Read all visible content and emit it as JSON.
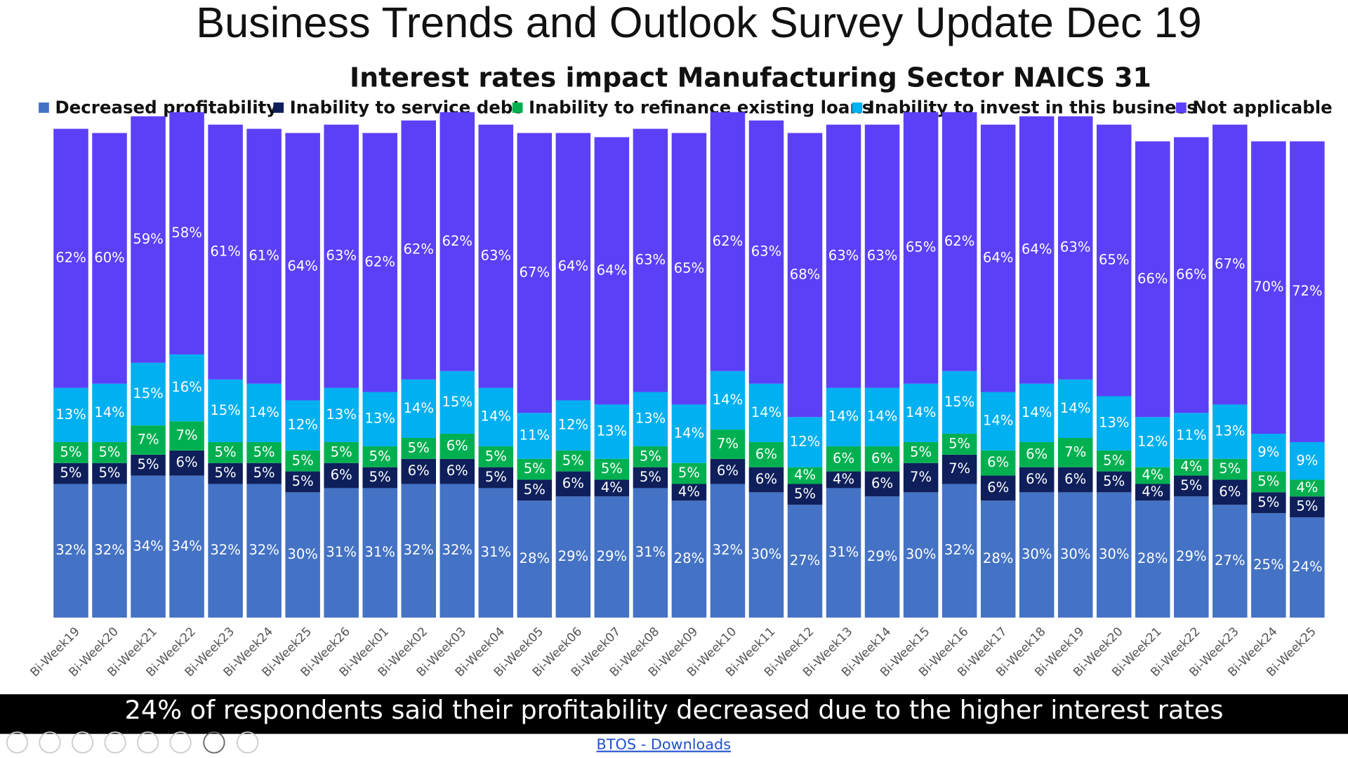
{
  "chart_data": {
    "type": "stacked_bar",
    "title": "Business Trends and Outlook Survey  Update Dec 19",
    "subtitle": "Interest rates impact Manufacturing Sector NAICS 31",
    "footer": "24% of respondents said their profitability decreased due to the higher interest rates",
    "link": "BTOS - Downloads",
    "legend": "top",
    "categories": [
      "Bi-Week19",
      "Bi-Week20",
      "Bi-Week21",
      "Bi-Week22",
      "Bi-Week23",
      "Bi-Week24",
      "Bi-Week25",
      "Bi-Week26",
      "Bi-Week01",
      "Bi-Week02",
      "Bi-Week03",
      "Bi-Week04",
      "Bi-Week05",
      "Bi-Week06",
      "Bi-Week07",
      "Bi-Week08",
      "Bi-Week09",
      "Bi-Week10",
      "Bi-Week11",
      "Bi-Week12",
      "Bi-Week13",
      "Bi-Week14",
      "Bi-Week15",
      "Bi-Week16",
      "Bi-Week17",
      "Bi-Week18",
      "Bi-Week19",
      "Bi-Week20",
      "Bi-Week21",
      "Bi-Week22",
      "Bi-Week23",
      "Bi-Week24",
      "Bi-Week25"
    ],
    "series": [
      {
        "name": "Decreased profitability",
        "color": "#4472c4",
        "values": [
          32,
          32,
          34,
          34,
          32,
          32,
          30,
          31,
          31,
          32,
          32,
          31,
          28,
          29,
          29,
          31,
          28,
          32,
          30,
          27,
          31,
          29,
          30,
          32,
          28,
          30,
          30,
          30,
          28,
          29,
          27,
          25,
          24
        ],
        "value_labels": [
          "32%",
          "32%",
          "34%",
          "34%",
          "32%",
          "32%",
          "30%",
          "31%",
          "31%",
          "32%",
          "32%",
          "31%",
          "28%",
          "29%",
          "29%",
          "31%",
          "28%",
          "32%",
          "30%",
          "27%",
          "31%",
          "29%",
          "30%",
          "32%",
          "28%",
          "30%",
          "30%",
          "30%",
          "28%",
          "29%",
          "27%",
          "25%",
          "24%"
        ]
      },
      {
        "name": "Inability to service debt",
        "color": "#0e1f5b",
        "values": [
          5,
          5,
          5,
          6,
          5,
          5,
          5,
          6,
          5,
          6,
          6,
          5,
          5,
          6,
          4,
          5,
          4,
          6,
          6,
          5,
          4,
          6,
          7,
          7,
          6,
          6,
          6,
          5,
          4,
          5,
          6,
          5,
          5
        ],
        "value_labels": [
          "5%",
          "5%",
          "5%",
          "6%",
          "5%",
          "5%",
          "5%",
          "6%",
          "5%",
          "6%",
          "6%",
          "5%",
          "5%",
          "6%",
          "4%",
          "5%",
          "4%",
          "6%",
          "6%",
          "5%",
          "4%",
          "6%",
          "7%",
          "7%",
          "6%",
          "6%",
          "6%",
          "5%",
          "4%",
          "5%",
          "6%",
          "5%",
          "5%"
        ]
      },
      {
        "name": "Inability to refinance existing loans",
        "color": "#00b050",
        "values": [
          5,
          5,
          7,
          7,
          5,
          5,
          5,
          5,
          5,
          5,
          6,
          5,
          5,
          5,
          5,
          5,
          5,
          7,
          6,
          4,
          6,
          6,
          5,
          5,
          6,
          6,
          7,
          5,
          4,
          4,
          5,
          5,
          4
        ],
        "value_labels": [
          "5%",
          "5%",
          "7%",
          "7%",
          "5%",
          "5%",
          "5%",
          "5%",
          "5%",
          "5%",
          "6%",
          "5%",
          "5%",
          "5%",
          "5%",
          "5%",
          "5%",
          "7%",
          "6%",
          "4%",
          "6%",
          "6%",
          "5%",
          "5%",
          "6%",
          "6%",
          "7%",
          "5%",
          "4%",
          "4%",
          "5%",
          "5%",
          "4%"
        ]
      },
      {
        "name": "Inability to invest in this business",
        "color": "#00b0f0",
        "values": [
          13,
          14,
          15,
          16,
          15,
          14,
          12,
          13,
          13,
          14,
          15,
          14,
          11,
          12,
          13,
          13,
          14,
          14,
          14,
          12,
          14,
          14,
          14,
          15,
          14,
          14,
          14,
          13,
          12,
          11,
          13,
          9,
          9
        ],
        "value_labels": [
          "13%",
          "14%",
          "15%",
          "16%",
          "15%",
          "14%",
          "12%",
          "13%",
          "13%",
          "14%",
          "15%",
          "14%",
          "11%",
          "12%",
          "13%",
          "13%",
          "14%",
          "14%",
          "14%",
          "12%",
          "14%",
          "14%",
          "14%",
          "15%",
          "14%",
          "14%",
          "14%",
          "13%",
          "12%",
          "11%",
          "13%",
          "9%",
          "9%"
        ]
      },
      {
        "name": "Not applicable",
        "color": "#5b40f8",
        "values": [
          62,
          60,
          59,
          58,
          61,
          61,
          64,
          63,
          62,
          62,
          62,
          63,
          67,
          64,
          64,
          63,
          65,
          62,
          63,
          68,
          63,
          63,
          65,
          62,
          64,
          64,
          63,
          65,
          66,
          66,
          67,
          70,
          72
        ],
        "value_labels": [
          "62%",
          "60%",
          "59%",
          "58%",
          "61%",
          "61%",
          "64%",
          "63%",
          "62%",
          "62%",
          "62%",
          "63%",
          "67%",
          "64%",
          "64%",
          "63%",
          "65%",
          "62%",
          "63%",
          "68%",
          "63%",
          "63%",
          "65%",
          "62%",
          "64%",
          "64%",
          "63%",
          "65%",
          "66%",
          "66%",
          "67%",
          "70%",
          "72%"
        ]
      }
    ]
  }
}
